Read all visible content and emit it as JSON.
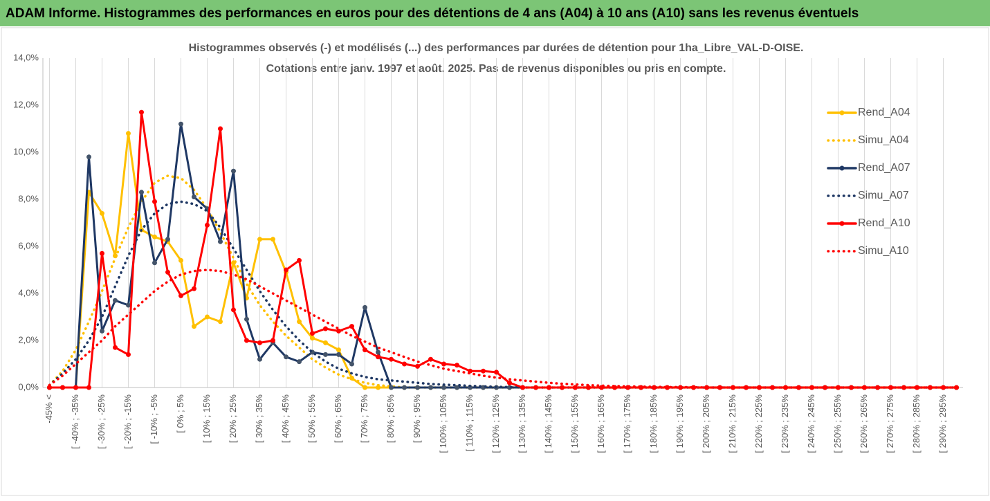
{
  "header": "ADAM Informe. Histogrammes des performances en euros pour des détentions de 4 ans (A04) à 10 ans (A10) sans les revenus éventuels",
  "chart_data": {
    "type": "line",
    "title": "Histogrammes observés (-) et modélisés (...) des performances par durées de détention pour 1ha_Libre_VAL-D-OISE.",
    "subtitle": "Cotations entre janv. 1997 et août. 2025. Pas de revenus disponibles ou pris en compte.",
    "categories": [
      "-45% <",
      null,
      "[ -40% ; -35%",
      null,
      "[ -30% ; -25%",
      null,
      "[ -20% ; -15%",
      null,
      "[ -10% ; -5%",
      null,
      "[ 0% ; 5%",
      null,
      "[ 10% ; 15%",
      null,
      "[ 20% ; 25%",
      null,
      "[ 30% ; 35%",
      null,
      "[ 40% ; 45%",
      null,
      "[ 50% ; 55%",
      null,
      "[ 60% ; 65%",
      null,
      "[ 70% ; 75%",
      null,
      "[ 80% ; 85%",
      null,
      "[ 90% ; 95%",
      null,
      "[ 100% ; 105%",
      null,
      "[ 110% ; 115%",
      null,
      "[ 120% ; 125%",
      null,
      "[ 130% ; 135%",
      null,
      "[ 140% ; 145%",
      null,
      "[ 150% ; 155%",
      null,
      "[ 160% ; 165%",
      null,
      "[ 170% ; 175%",
      null,
      "[ 180% ; 185%",
      null,
      "[ 190% ; 195%",
      null,
      "[ 200% ; 205%",
      null,
      "[ 210% ; 215%",
      null,
      "[ 220% ; 225%",
      null,
      "[ 230% ; 235%",
      null,
      "[ 240% ; 245%",
      null,
      "[ 250% ; 255%",
      null,
      "[ 260% ; 265%",
      null,
      "[ 270% ; 275%",
      null,
      "[ 280% ; 285%",
      null,
      "[ 290% ; 295%",
      null
    ],
    "series": [
      {
        "name": "Rend_A04",
        "color": "#ffc000",
        "style": "solid",
        "values": [
          0,
          0,
          0,
          8.3,
          7.4,
          5.6,
          10.8,
          6.7,
          6.4,
          6.2,
          5.4,
          2.6,
          3.0,
          2.8,
          5.3,
          3.8,
          6.3,
          6.3,
          4.9,
          2.8,
          2.1,
          1.9,
          1.6,
          0.4,
          0,
          0,
          0,
          0,
          0,
          0,
          0,
          0,
          0,
          0,
          0,
          0,
          0,
          0,
          0,
          0,
          0,
          0,
          0,
          0,
          0,
          0,
          0,
          0,
          0,
          0,
          0,
          0,
          0,
          0,
          0,
          0,
          0,
          0,
          0,
          0,
          0,
          0,
          0,
          0,
          0,
          0,
          0,
          0,
          0,
          0
        ]
      },
      {
        "name": "Simu_A04",
        "color": "#ffc000",
        "style": "dotted",
        "values": [
          0.1,
          0.7,
          1.6,
          2.8,
          4.1,
          5.5,
          6.8,
          7.9,
          8.7,
          9.0,
          8.9,
          8.4,
          7.6,
          6.6,
          5.5,
          4.4,
          3.5,
          2.8,
          2.2,
          1.7,
          1.2,
          0.85,
          0.55,
          0.35,
          0.2,
          0.1,
          0.05,
          0,
          0,
          0,
          0,
          0,
          0,
          0,
          0,
          0,
          0,
          0,
          0,
          0,
          0,
          0,
          0,
          0,
          0,
          0,
          0,
          0,
          0,
          0,
          0,
          0,
          0,
          0,
          0,
          0,
          0,
          0,
          0,
          0,
          0,
          0,
          0,
          0,
          0,
          0,
          0,
          0,
          0,
          0
        ]
      },
      {
        "name": "Rend_A07",
        "color": "#1f3864",
        "style": "solid",
        "values": [
          0,
          0,
          0,
          9.8,
          2.4,
          3.7,
          3.5,
          8.3,
          5.3,
          6.3,
          11.2,
          8.1,
          7.6,
          6.2,
          9.2,
          2.9,
          1.2,
          1.9,
          1.3,
          1.1,
          1.5,
          1.4,
          1.4,
          1.0,
          3.4,
          1.5,
          0,
          0,
          0,
          0,
          0,
          0,
          0,
          0,
          0,
          0,
          0,
          0,
          0,
          0,
          0,
          0,
          0,
          0,
          0,
          0,
          0,
          0,
          0,
          0,
          0,
          0,
          0,
          0,
          0,
          0,
          0,
          0,
          0,
          0,
          0,
          0,
          0,
          0,
          0,
          0,
          0,
          0,
          0,
          0
        ]
      },
      {
        "name": "Simu_A07",
        "color": "#1f3864",
        "style": "dotted",
        "values": [
          0.1,
          0.6,
          1.2,
          2.0,
          3.0,
          4.3,
          5.6,
          6.7,
          7.4,
          7.8,
          7.9,
          7.8,
          7.5,
          6.8,
          5.9,
          5.0,
          4.1,
          3.3,
          2.6,
          2.0,
          1.5,
          1.1,
          0.8,
          0.6,
          0.45,
          0.35,
          0.3,
          0.25,
          0.2,
          0.15,
          0.12,
          0.1,
          0.07,
          0.05,
          0.03,
          0.02,
          0,
          0,
          0,
          0,
          0,
          0,
          0,
          0,
          0,
          0,
          0,
          0,
          0,
          0,
          0,
          0,
          0,
          0,
          0,
          0,
          0,
          0,
          0,
          0,
          0,
          0,
          0,
          0,
          0,
          0,
          0,
          0,
          0,
          0
        ]
      },
      {
        "name": "Rend_A10",
        "color": "#ff0000",
        "style": "solid",
        "values": [
          0,
          0,
          0,
          0,
          5.7,
          1.7,
          1.4,
          11.7,
          7.9,
          4.9,
          3.9,
          4.2,
          6.9,
          11.0,
          3.3,
          2.0,
          1.9,
          2.0,
          5.0,
          5.4,
          2.3,
          2.5,
          2.4,
          2.6,
          1.6,
          1.3,
          1.2,
          1.0,
          0.9,
          1.2,
          1.0,
          0.95,
          0.7,
          0.7,
          0.65,
          0.2,
          0,
          0,
          0,
          0,
          0,
          0,
          0,
          0,
          0,
          0,
          0,
          0,
          0,
          0,
          0,
          0,
          0,
          0,
          0,
          0,
          0,
          0,
          0,
          0,
          0,
          0,
          0,
          0,
          0,
          0,
          0,
          0,
          0,
          0
        ]
      },
      {
        "name": "Simu_A10",
        "color": "#ff0000",
        "style": "dotted",
        "values": [
          0.1,
          0.5,
          1.0,
          1.5,
          2.0,
          2.6,
          3.1,
          3.6,
          4.1,
          4.5,
          4.8,
          4.95,
          5.0,
          4.95,
          4.8,
          4.6,
          4.3,
          4.0,
          3.7,
          3.4,
          3.1,
          2.8,
          2.5,
          2.2,
          1.95,
          1.7,
          1.5,
          1.3,
          1.1,
          0.95,
          0.8,
          0.7,
          0.6,
          0.5,
          0.42,
          0.35,
          0.3,
          0.25,
          0.2,
          0.16,
          0.13,
          0.1,
          0.08,
          0.06,
          0.05,
          0.04,
          0.03,
          0.02,
          0.02,
          0.01,
          0,
          0,
          0,
          0,
          0,
          0,
          0,
          0,
          0,
          0,
          0,
          0,
          0,
          0,
          0,
          0,
          0,
          0,
          0,
          0
        ]
      }
    ],
    "ylim": [
      0,
      14
    ],
    "yticks": [
      {
        "value": 0,
        "label": "0,0%"
      },
      {
        "value": 2,
        "label": "2,0%"
      },
      {
        "value": 4,
        "label": "4,0%"
      },
      {
        "value": 6,
        "label": "6,0%"
      },
      {
        "value": 8,
        "label": "8,0%"
      },
      {
        "value": 10,
        "label": "10,0%"
      },
      {
        "value": 12,
        "label": "12,0%"
      },
      {
        "value": 14,
        "label": "14,0%"
      }
    ],
    "grid": "x",
    "legend": "right"
  }
}
